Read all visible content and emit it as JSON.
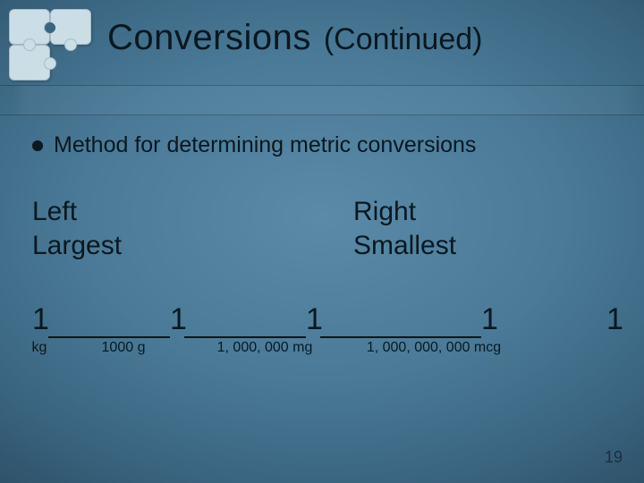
{
  "colors": {
    "bg_center": "#5a8aa8",
    "bg_edge": "#0a1820",
    "text": "#0a1820",
    "puzzle": "#d8e8ef"
  },
  "typography": {
    "family": "Verdana",
    "title_size_pt": 40,
    "subtitle_size_pt": 34,
    "bullet_size_pt": 25,
    "pair_size_pt": 30,
    "chain_big_size_pt": 34,
    "chain_under_size_pt": 16,
    "pagenum_size_pt": 18
  },
  "title": {
    "main": "Conversions",
    "sub": "(Continued)"
  },
  "bullet": "Method for determining metric conversions",
  "pairs": {
    "left": {
      "top": "Left",
      "bottom": "Largest"
    },
    "right": {
      "top": "Right",
      "bottom": "Smallest"
    }
  },
  "chain": {
    "ones": [
      "1",
      "1",
      "1",
      "1",
      "1"
    ],
    "under_kg": "kg",
    "under_g": "1000 g",
    "under_mg": "1, 000, 000 mg",
    "under_mcg": "1, 000, 000, 000 mcg"
  },
  "page_number": "19"
}
